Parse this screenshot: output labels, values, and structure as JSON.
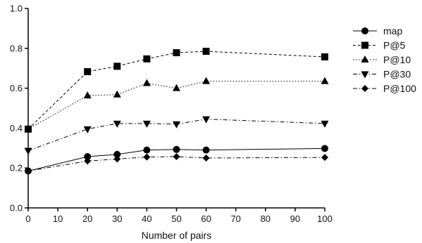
{
  "chart_data": {
    "type": "line",
    "title": "",
    "xlabel": "Number of pairs",
    "ylabel": "",
    "x": [
      0,
      20,
      30,
      40,
      50,
      60,
      100
    ],
    "xlim": [
      0,
      100
    ],
    "ylim": [
      0.0,
      1.0
    ],
    "xticks": [
      "0",
      "10",
      "20",
      "30",
      "40",
      "50",
      "60",
      "70",
      "80",
      "90",
      "100"
    ],
    "yticks": [
      "0.0",
      "0.2",
      "0.4",
      "0.6",
      "0.8",
      "1.0"
    ],
    "grid": false,
    "legend_position": "right",
    "series": [
      {
        "name": "map",
        "marker": "circle",
        "line": "solid",
        "color": "#000000",
        "values": [
          0.185,
          0.257,
          0.268,
          0.29,
          0.293,
          0.29,
          0.298
        ]
      },
      {
        "name": "P@5",
        "marker": "square",
        "line": "dashed",
        "color": "#000000",
        "values": [
          0.395,
          0.683,
          0.71,
          0.747,
          0.778,
          0.785,
          0.757
        ]
      },
      {
        "name": "P@10",
        "marker": "triangle-up",
        "line": "dotted",
        "color": "#000000",
        "values": [
          0.395,
          0.563,
          0.568,
          0.625,
          0.6,
          0.635,
          0.635
        ]
      },
      {
        "name": "P@30",
        "marker": "triangle-down",
        "line": "dashdot",
        "color": "#000000",
        "values": [
          0.287,
          0.395,
          0.423,
          0.423,
          0.42,
          0.445,
          0.423
        ]
      },
      {
        "name": "P@100",
        "marker": "diamond",
        "line": "dashdot",
        "color": "#000000",
        "values": [
          0.185,
          0.235,
          0.245,
          0.255,
          0.257,
          0.25,
          0.253
        ]
      }
    ]
  }
}
